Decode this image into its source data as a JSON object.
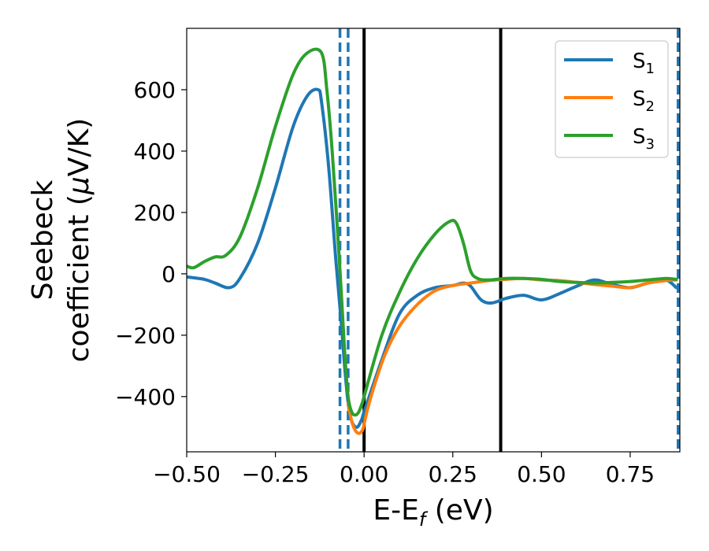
{
  "chart_data": {
    "type": "line",
    "xlabel": "E-E",
    "xlabel_sub": "f",
    "xlabel_unit": " (eV)",
    "ylabel_line1": "Seebeck",
    "ylabel_line2": "coefficient  (",
    "ylabel_mu": "μ",
    "ylabel_unit": "V/K)",
    "xlim": [
      -0.5,
      0.89
    ],
    "ylim": [
      -580,
      800
    ],
    "xticks": [
      -0.5,
      -0.25,
      0.0,
      0.25,
      0.5,
      0.75
    ],
    "xtick_labels": [
      "−0.50",
      "−0.25",
      "0.00",
      "0.25",
      "0.50",
      "0.75"
    ],
    "yticks": [
      600,
      400,
      200,
      0,
      -200,
      -400
    ],
    "ytick_labels": [
      "600",
      "400",
      "200",
      "0",
      "−200",
      "−400"
    ],
    "grid": false,
    "legend_position": "top-right",
    "series": [
      {
        "name": "S",
        "name_sub": "1",
        "color": "#1f77b4",
        "x": [
          -0.5,
          -0.45,
          -0.42,
          -0.38,
          -0.35,
          -0.3,
          -0.25,
          -0.2,
          -0.16,
          -0.13,
          -0.12,
          -0.1,
          -0.08,
          -0.065,
          -0.055,
          -0.045,
          -0.035,
          -0.02,
          -0.005,
          0.0,
          0.05,
          0.1,
          0.15,
          0.2,
          0.25,
          0.28,
          0.3,
          0.33,
          0.36,
          0.4,
          0.45,
          0.5,
          0.55,
          0.6,
          0.65,
          0.7,
          0.75,
          0.8,
          0.85,
          0.88
        ],
        "y": [
          -10,
          -18,
          -30,
          -45,
          -15,
          100,
          280,
          480,
          580,
          600,
          560,
          350,
          50,
          -150,
          -300,
          -420,
          -480,
          -500,
          -470,
          -450,
          -280,
          -130,
          -70,
          -45,
          -38,
          -30,
          -40,
          -85,
          -95,
          -80,
          -70,
          -85,
          -65,
          -40,
          -20,
          -35,
          -45,
          -30,
          -20,
          -45
        ]
      },
      {
        "name": "S",
        "name_sub": "2",
        "color": "#ff7f0e",
        "x": [
          -0.045,
          -0.035,
          -0.025,
          -0.015,
          -0.008,
          -0.003,
          0.0,
          0.01,
          0.03,
          0.06,
          0.1,
          0.15,
          0.2,
          0.25,
          0.3,
          0.35,
          0.4,
          0.45,
          0.5,
          0.55,
          0.6,
          0.65,
          0.7,
          0.75,
          0.8,
          0.85,
          0.88
        ],
        "y": [
          -420,
          -480,
          -510,
          -520,
          -515,
          -505,
          -490,
          -440,
          -360,
          -260,
          -170,
          -100,
          -55,
          -38,
          -30,
          -22,
          -18,
          -15,
          -20,
          -22,
          -28,
          -35,
          -40,
          -45,
          -30,
          -22,
          -20
        ]
      },
      {
        "name": "S",
        "name_sub": "3",
        "color": "#2ca02c",
        "x": [
          -0.5,
          -0.48,
          -0.45,
          -0.42,
          -0.39,
          -0.35,
          -0.3,
          -0.25,
          -0.2,
          -0.16,
          -0.12,
          -0.105,
          -0.09,
          -0.07,
          -0.055,
          -0.045,
          -0.035,
          -0.025,
          -0.015,
          -0.005,
          0.0,
          0.05,
          0.1,
          0.15,
          0.2,
          0.24,
          0.26,
          0.28,
          0.3,
          0.32,
          0.35,
          0.4,
          0.45,
          0.5,
          0.55,
          0.6,
          0.65,
          0.7,
          0.75,
          0.8,
          0.85,
          0.88
        ],
        "y": [
          25,
          20,
          40,
          55,
          60,
          120,
          280,
          480,
          650,
          720,
          720,
          600,
          400,
          50,
          -250,
          -400,
          -450,
          -460,
          -450,
          -420,
          -400,
          -200,
          -60,
          50,
          130,
          170,
          165,
          100,
          10,
          -15,
          -20,
          -15,
          -15,
          -18,
          -25,
          -28,
          -30,
          -28,
          -25,
          -20,
          -15,
          -18
        ]
      }
    ],
    "vlines": [
      {
        "x": -0.068,
        "style": "dashed",
        "color": "#1f77b4"
      },
      {
        "x": -0.045,
        "style": "dashed",
        "color": "#1f77b4"
      },
      {
        "x": 0.0,
        "style": "solid",
        "color": "#000000"
      },
      {
        "x": 0.385,
        "style": "solid",
        "color": "#000000"
      },
      {
        "x": 0.885,
        "style": "dashed",
        "color": "#1f77b4"
      }
    ]
  }
}
